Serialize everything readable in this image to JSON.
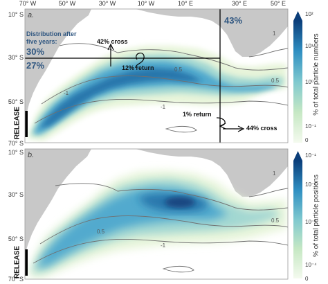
{
  "map": {
    "lon_ticks": [
      "70° W",
      "50° W",
      "30° W",
      "10° W",
      "10° E",
      "30° E",
      "50° E"
    ],
    "lat_ticks_top": [
      "10° S",
      "30° S",
      "50° S",
      "70° S"
    ],
    "lat_ticks_bottom": [
      "10° S",
      "30° S",
      "50° S",
      "70° S"
    ]
  },
  "panel_a": {
    "letter": "a.",
    "distribution_label": "Distribution after five years:",
    "north_percent": "30%",
    "south_percent": "27%",
    "east_percent": "43%",
    "cross_north": "42% cross",
    "return_north": "12% return",
    "return_east": "1% return",
    "cross_east": "44% cross",
    "release_label": "RELEASE",
    "contour_labels": [
      "-1",
      "-1",
      "0.5",
      "0.5",
      "1"
    ],
    "colorbar": {
      "title": "% of total particle numbers",
      "ticks": [
        "10²",
        "10¹",
        "10⁰",
        "10⁻¹",
        "0"
      ]
    }
  },
  "panel_b": {
    "letter": "b.",
    "release_label": "RELEASE",
    "contour_labels": [
      "0.5",
      "-1",
      "0.5",
      "1"
    ],
    "colorbar": {
      "title": "% of total particle positions",
      "ticks": [
        "10⁻¹",
        "10⁻²",
        "10⁻³",
        "10⁻⁴",
        "0"
      ]
    }
  },
  "colors": {
    "land": "#c8c8c8",
    "ocean": "#ffffff",
    "density_low": "#e8f5dd",
    "density_mid": "#7fc3cf",
    "density_high": "#1d6fa8",
    "density_max": "#0b3e7a",
    "stat_text": "#2f5680"
  }
}
